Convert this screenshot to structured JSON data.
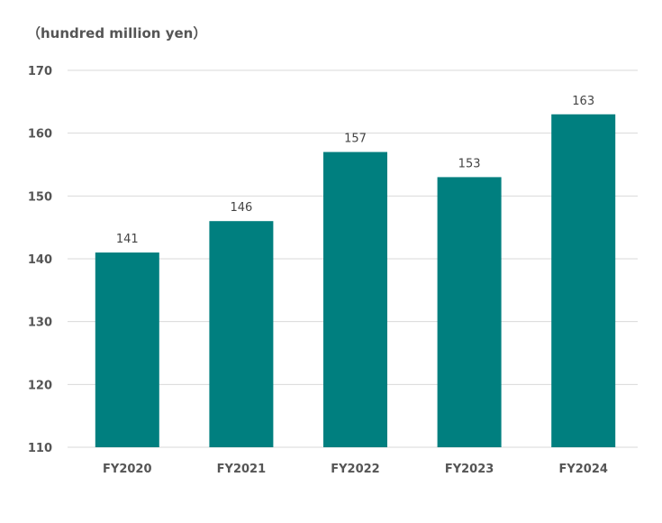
{
  "chart_data": {
    "type": "bar",
    "ylabel": "（hundred million yen）",
    "categories": [
      "FY2020",
      "FY2021",
      "FY2022",
      "FY2023",
      "FY2024"
    ],
    "values": [
      141,
      146,
      157,
      153,
      163
    ],
    "data_labels": [
      "141",
      "146",
      "157",
      "153",
      "163"
    ],
    "ylim": [
      110,
      170
    ],
    "yticks": [
      110,
      120,
      130,
      140,
      150,
      160,
      170
    ],
    "grid": true,
    "legend": "none",
    "colors": {
      "bar": "#007f7f",
      "grid": "#d9d9d9"
    }
  }
}
